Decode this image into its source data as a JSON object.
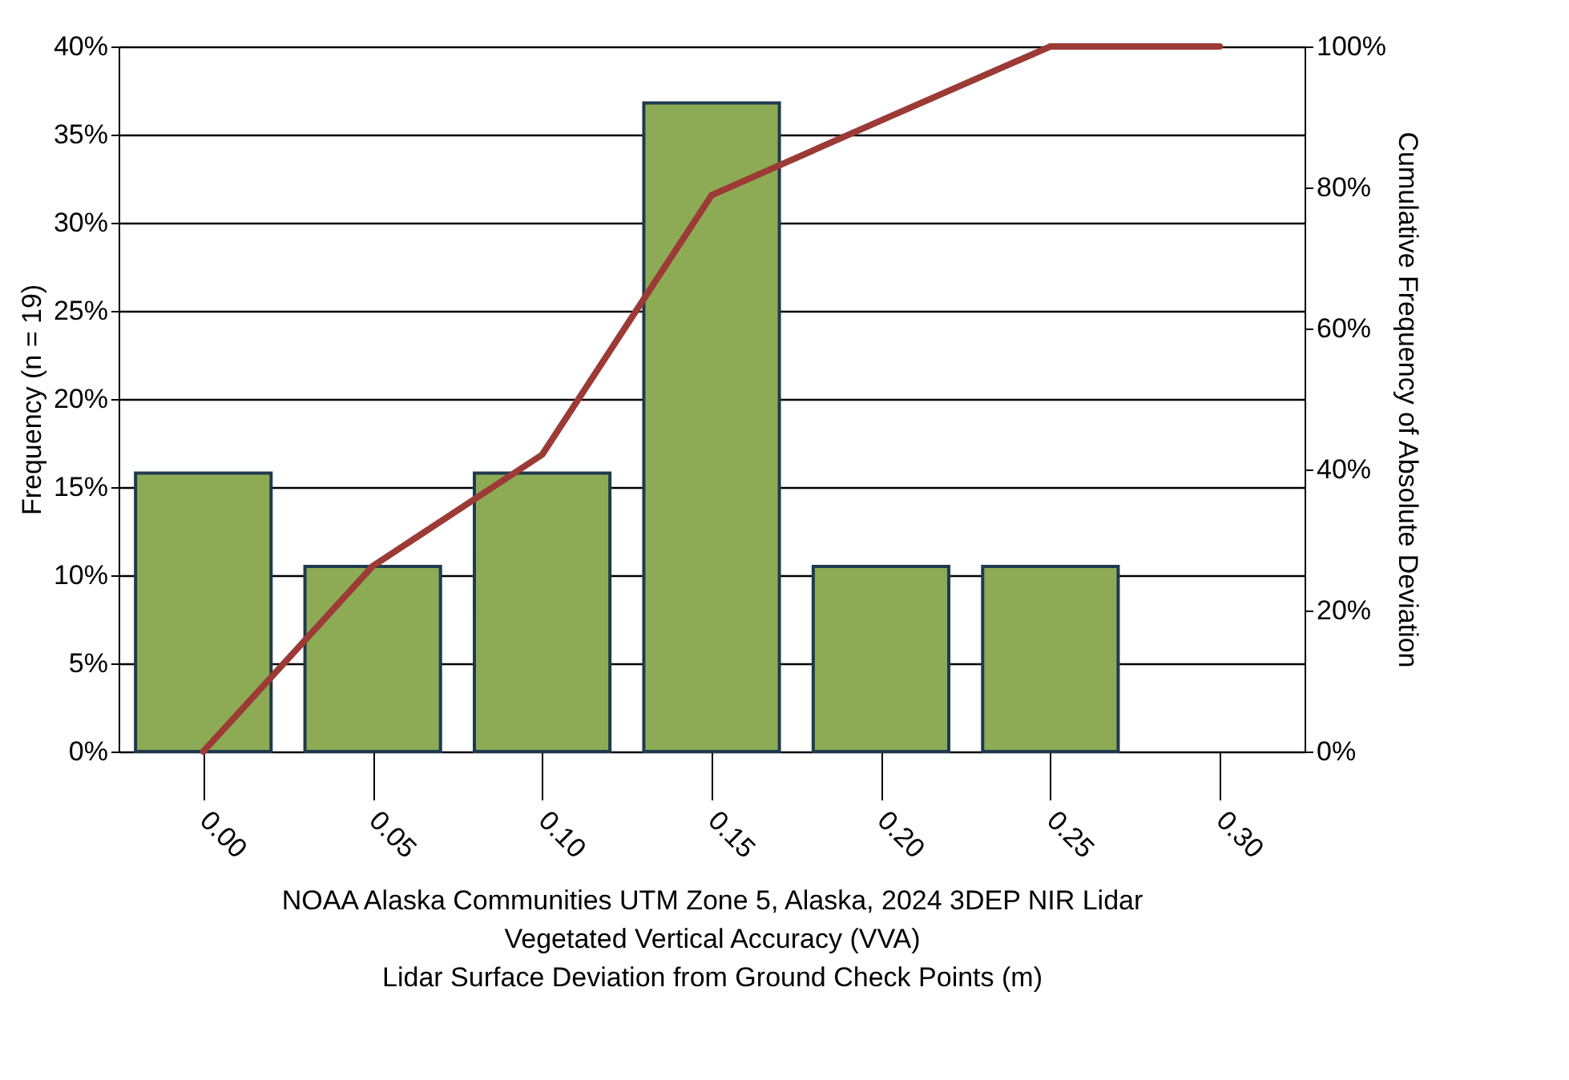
{
  "chart_data": {
    "type": "bar",
    "xlabel": "NOAA Alaska Communities UTM Zone 5, Alaska, 2024 3DEP NIR Lidar\nVegetated Vertical Accuracy (VVA)\nLidar Surface Deviation from Ground Check Points (m)",
    "ylabel": "Frequency (n = 19)",
    "y2label": "Cumulative Frequency of Absolute Deviation",
    "categories": [
      "0.00",
      "0.05",
      "0.10",
      "0.15",
      "0.20",
      "0.25",
      "0.30"
    ],
    "series": [
      {
        "color": "#8dab55",
        "values": [
          15.8,
          10.5,
          15.8,
          36.8,
          10.5,
          10.5,
          null
        ]
      },
      {
        "type": "line",
        "axis": "y2",
        "color": "#9c3a36",
        "values": [
          0,
          26.3,
          42.1,
          78.9,
          89.5,
          100,
          100
        ]
      }
    ],
    "ylim": [
      0,
      40
    ],
    "yticks": [
      {
        "value": 0,
        "label": "0%"
      },
      {
        "value": 5,
        "label": "5%"
      },
      {
        "value": 10,
        "label": "10%"
      },
      {
        "value": 15,
        "label": "15%"
      },
      {
        "value": 20,
        "label": "20%"
      },
      {
        "value": 25,
        "label": "25%"
      },
      {
        "value": 30,
        "label": "30%"
      },
      {
        "value": 35,
        "label": "35%"
      },
      {
        "value": 40,
        "label": "40%"
      }
    ],
    "y2lim": [
      0,
      100
    ],
    "y2ticks": [
      {
        "value": 0,
        "label": "0%"
      },
      {
        "value": 20,
        "label": "20%"
      },
      {
        "value": 40,
        "label": "40%"
      },
      {
        "value": 60,
        "label": "60%"
      },
      {
        "value": 80,
        "label": "80%"
      },
      {
        "value": 100,
        "label": "100%"
      }
    ],
    "grid": "y"
  }
}
